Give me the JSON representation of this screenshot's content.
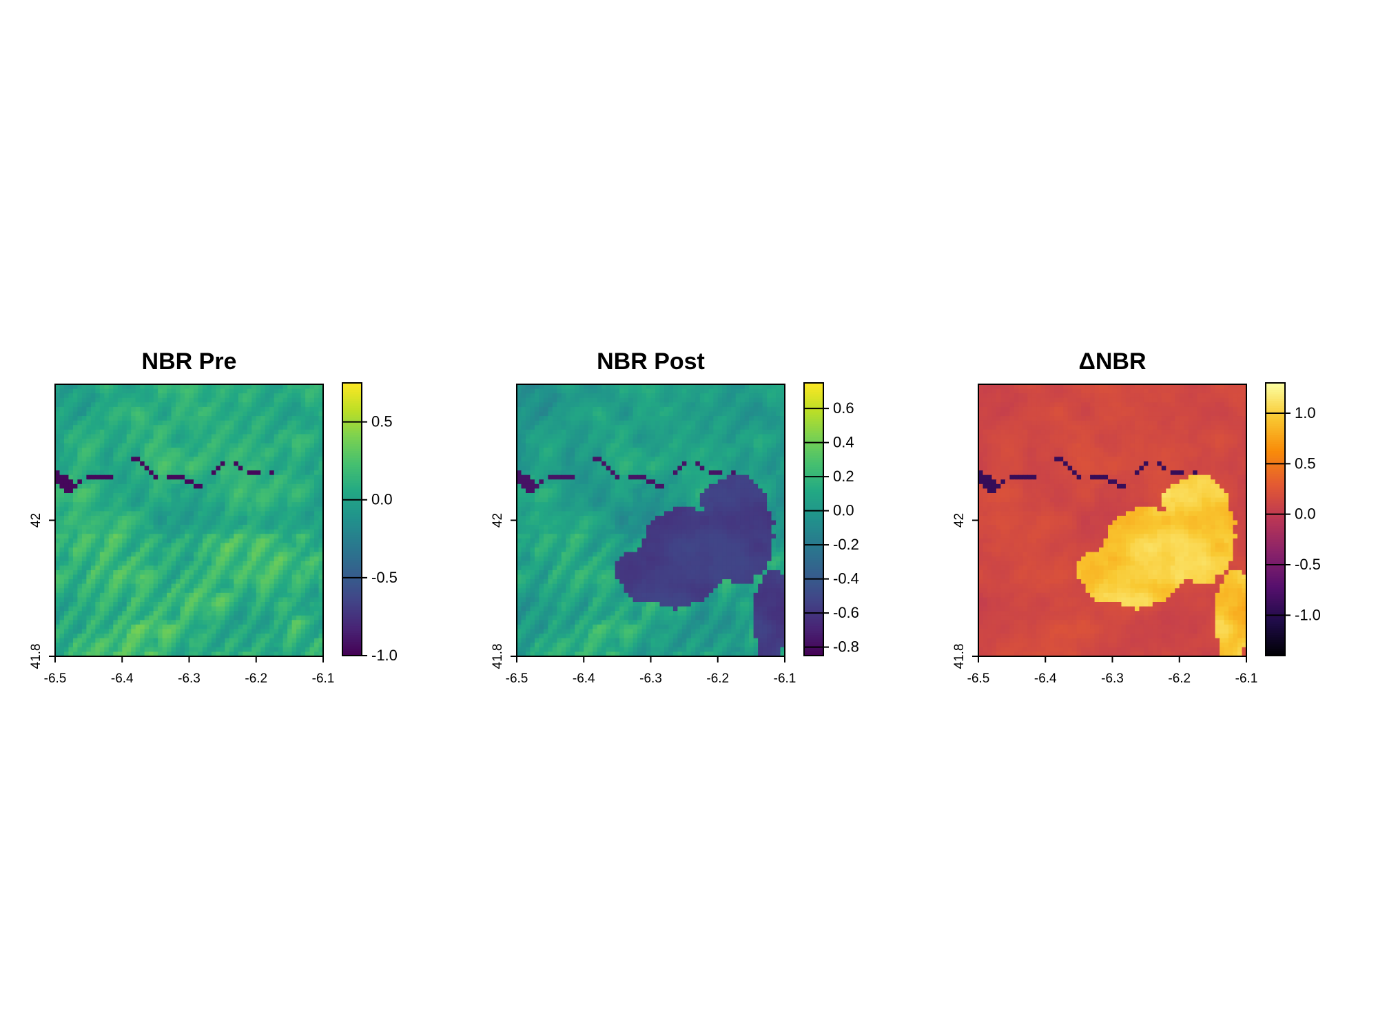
{
  "chart_data": [
    {
      "type": "heatmap",
      "title": "NBR Pre",
      "xlabel": "",
      "ylabel": "",
      "xlim": [
        -6.5,
        -6.1
      ],
      "ylim": [
        41.8,
        42.2
      ],
      "x_ticks": [
        "-6.5",
        "-6.4",
        "-6.3",
        "-6.2",
        "-6.1"
      ],
      "y_ticks": [
        "41.8",
        "42"
      ],
      "colormap": "viridis",
      "colorbar": {
        "range": [
          -1.0,
          0.75
        ],
        "ticks": [
          "0.5",
          "0.0",
          "-0.5",
          "-1.0"
        ],
        "tick_values": [
          0.5,
          0.0,
          -0.5,
          -1.0
        ]
      },
      "dominant_colors": [
        "#3fbc73",
        "#7fd34e",
        "#22a884",
        "#440154"
      ]
    },
    {
      "type": "heatmap",
      "title": "NBR Post",
      "xlabel": "",
      "ylabel": "",
      "xlim": [
        -6.5,
        -6.1
      ],
      "ylim": [
        41.8,
        42.2
      ],
      "x_ticks": [
        "-6.5",
        "-6.4",
        "-6.3",
        "-6.2",
        "-6.1"
      ],
      "y_ticks": [
        "41.8",
        "42"
      ],
      "colormap": "viridis",
      "colorbar": {
        "range": [
          -0.85,
          0.75
        ],
        "ticks": [
          "0.6",
          "0.4",
          "0.2",
          "0.0",
          "-0.2",
          "-0.4",
          "-0.6",
          "-0.8"
        ],
        "tick_values": [
          0.6,
          0.4,
          0.2,
          0.0,
          -0.2,
          -0.4,
          -0.6,
          -0.8
        ]
      },
      "dominant_colors": [
        "#2c9b8a",
        "#5ec962",
        "#31427f",
        "#482475"
      ]
    },
    {
      "type": "heatmap",
      "title": "ΔNBR",
      "xlabel": "",
      "ylabel": "",
      "xlim": [
        -6.5,
        -6.1
      ],
      "ylim": [
        41.8,
        42.2
      ],
      "x_ticks": [
        "-6.5",
        "-6.4",
        "-6.3",
        "-6.2",
        "-6.1"
      ],
      "y_ticks": [
        "41.8",
        "42"
      ],
      "colormap": "inferno",
      "colorbar": {
        "range": [
          -1.4,
          1.3
        ],
        "ticks": [
          "1.0",
          "0.5",
          "0.0",
          "-0.5",
          "-1.0"
        ],
        "tick_values": [
          1.0,
          0.5,
          0.0,
          -0.5,
          -1.0
        ]
      },
      "dominant_colors": [
        "#c23d2b",
        "#f8a01a",
        "#fde76a",
        "#2a0b57"
      ]
    }
  ]
}
